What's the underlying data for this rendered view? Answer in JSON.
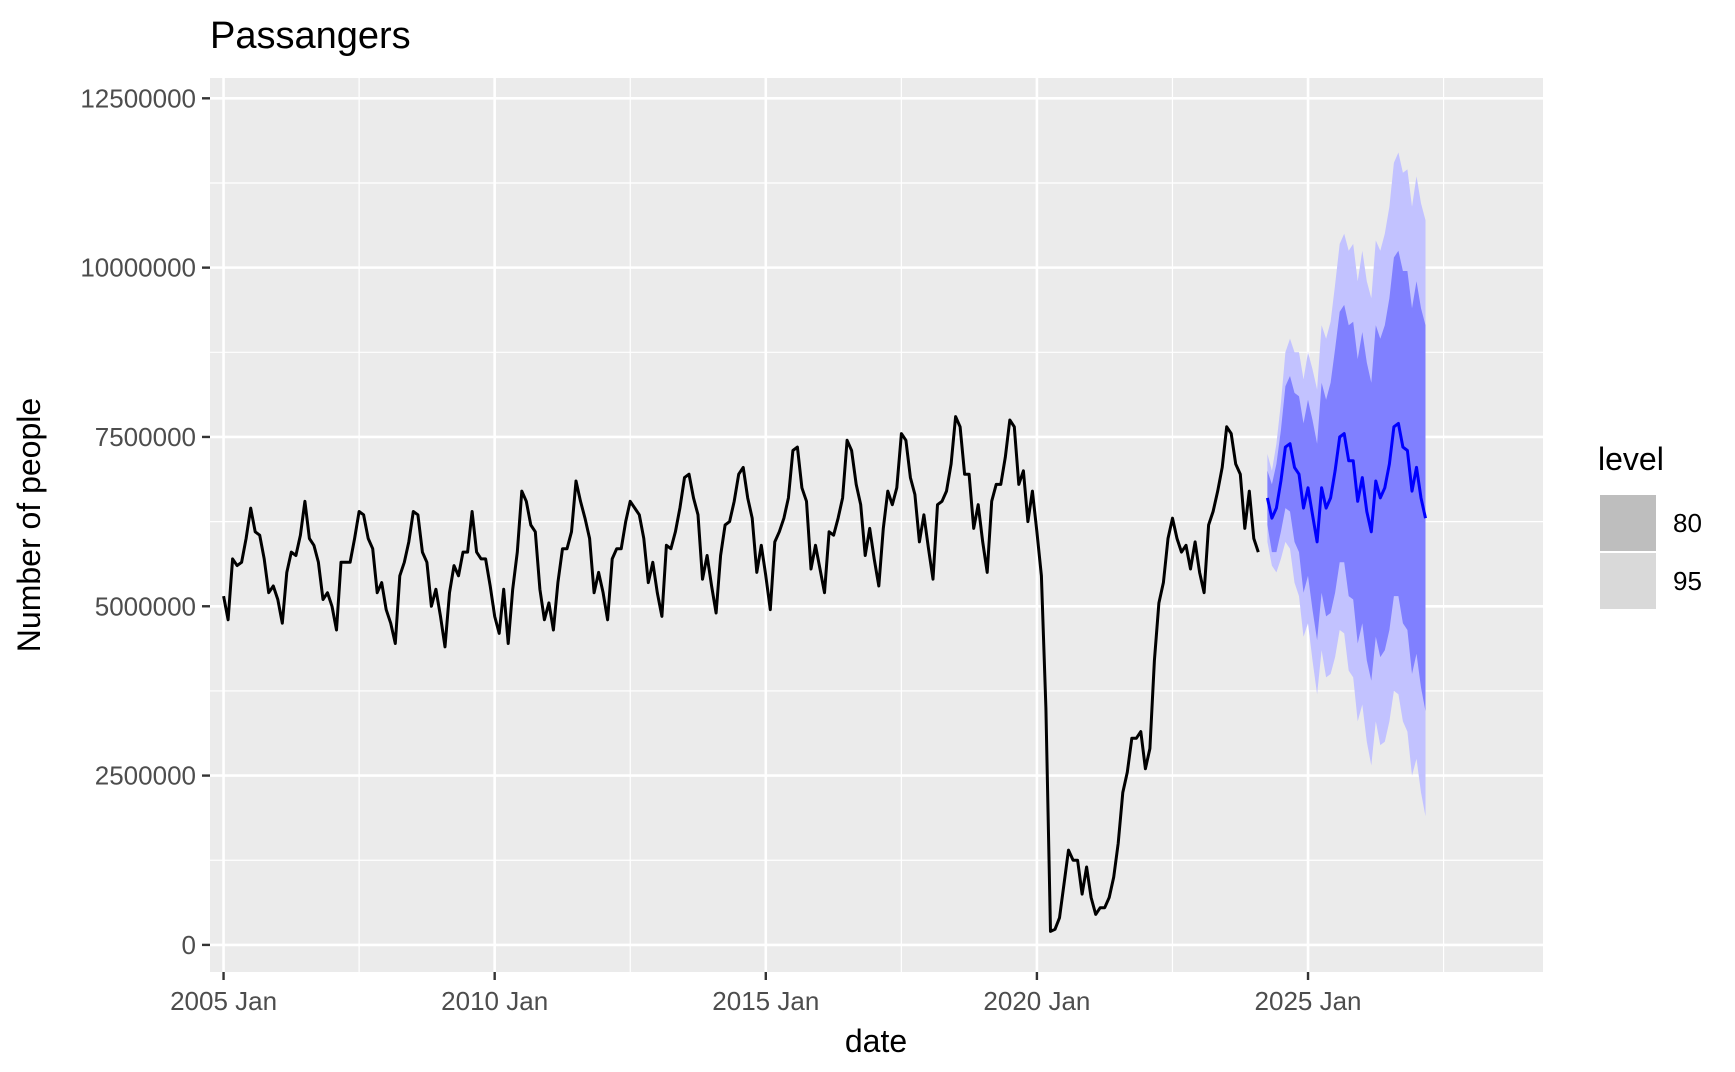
{
  "chart_data": {
    "type": "line",
    "title": "Passangers",
    "xlabel": "date",
    "ylabel": "Number of people",
    "x_ticks": [
      "2005 Jan",
      "2010 Jan",
      "2015 Jan",
      "2020 Jan",
      "2025 Jan"
    ],
    "y_ticks": [
      "0",
      "2500000",
      "5000000",
      "7500000",
      "10000000",
      "12500000"
    ],
    "xlim": [
      "2004-10",
      "2029-05"
    ],
    "ylim": [
      -400000,
      12800000
    ],
    "grid": true,
    "legend": {
      "title": "level",
      "position": "right",
      "entries": [
        {
          "label": "80",
          "color": "#bebebe"
        },
        {
          "label": "95",
          "color": "#d9d9d9"
        }
      ]
    },
    "colors": {
      "panel": "#ebebeb",
      "grid": "#ffffff",
      "history": "#000000",
      "forecast": "#0000ff",
      "band80": "#8080ff",
      "band95": "#c2c2ff"
    },
    "series": [
      {
        "kind": "history",
        "start": "2005-01",
        "values": [
          5150000,
          4800000,
          5700000,
          5600000,
          5650000,
          6000000,
          6450000,
          6100000,
          6050000,
          5700000,
          5200000,
          5300000,
          5100000,
          4750000,
          5500000,
          5800000,
          5750000,
          6050000,
          6550000,
          6000000,
          5900000,
          5650000,
          5100000,
          5200000,
          5000000,
          4650000,
          5650000,
          5650000,
          5650000,
          6000000,
          6400000,
          6350000,
          6000000,
          5850000,
          5200000,
          5350000,
          4950000,
          4750000,
          4450000,
          5450000,
          5650000,
          5950000,
          6400000,
          6350000,
          5800000,
          5650000,
          5000000,
          5250000,
          4850000,
          4400000,
          5200000,
          5600000,
          5450000,
          5800000,
          5800000,
          6400000,
          5800000,
          5700000,
          5700000,
          5300000,
          4850000,
          4600000,
          5250000,
          4450000,
          5250000,
          5800000,
          6700000,
          6550000,
          6200000,
          6100000,
          5250000,
          4800000,
          5050000,
          4650000,
          5350000,
          5850000,
          5850000,
          6100000,
          6850000,
          6550000,
          6300000,
          6000000,
          5200000,
          5500000,
          5200000,
          4800000,
          5700000,
          5850000,
          5850000,
          6250000,
          6550000,
          6450000,
          6350000,
          6000000,
          5350000,
          5650000,
          5200000,
          4850000,
          5900000,
          5850000,
          6100000,
          6450000,
          6900000,
          6950000,
          6600000,
          6350000,
          5400000,
          5750000,
          5300000,
          4900000,
          5750000,
          6200000,
          6250000,
          6550000,
          6950000,
          7050000,
          6600000,
          6300000,
          5500000,
          5900000,
          5450000,
          4950000,
          5950000,
          6100000,
          6300000,
          6600000,
          7300000,
          7350000,
          6750000,
          6550000,
          5550000,
          5900000,
          5550000,
          5200000,
          6100000,
          6050000,
          6300000,
          6600000,
          7450000,
          7300000,
          6800000,
          6500000,
          5750000,
          6150000,
          5700000,
          5300000,
          6150000,
          6700000,
          6500000,
          6750000,
          7550000,
          7450000,
          6900000,
          6650000,
          5950000,
          6350000,
          5850000,
          5400000,
          6500000,
          6550000,
          6700000,
          7100000,
          7800000,
          7650000,
          6950000,
          6950000,
          6150000,
          6500000,
          5950000,
          5500000,
          6550000,
          6800000,
          6800000,
          7200000,
          7750000,
          7650000,
          6800000,
          7000000,
          6250000,
          6700000,
          6100000,
          5450000,
          3500000,
          200000,
          230000,
          400000,
          900000,
          1400000,
          1250000,
          1250000,
          750000,
          1150000,
          700000,
          450000,
          550000,
          550000,
          700000,
          1000000,
          1500000,
          2250000,
          2550000,
          3050000,
          3050000,
          3150000,
          2600000,
          2900000,
          4200000,
          5050000,
          5350000,
          6000000,
          6300000,
          6000000,
          5800000,
          5900000,
          5550000,
          5950000,
          5500000,
          5200000,
          6200000,
          6400000,
          6700000,
          7050000,
          7650000,
          7550000,
          7100000,
          6950000,
          6150000,
          6700000,
          6000000,
          5800000
        ]
      },
      {
        "kind": "forecast",
        "start": "2024-04",
        "values": [
          6600000,
          6300000,
          6450000,
          6850000,
          7350000,
          7400000,
          7050000,
          6950000,
          6450000,
          6750000,
          6350000,
          5950000,
          6750000,
          6450000,
          6600000,
          7000000,
          7500000,
          7550000,
          7150000,
          7150000,
          6550000,
          6900000,
          6400000,
          6100000,
          6850000,
          6600000,
          6750000,
          7100000,
          7650000,
          7700000,
          7350000,
          7300000,
          6700000,
          7050000,
          6600000,
          6300000
        ],
        "lo80": [
          6200000,
          5800000,
          5800000,
          6100000,
          6450000,
          6400000,
          5950000,
          5800000,
          5200000,
          5450000,
          4950000,
          4500000,
          5200000,
          4850000,
          4900000,
          5200000,
          5650000,
          5650000,
          5150000,
          5100000,
          4450000,
          4750000,
          4200000,
          3900000,
          4550000,
          4250000,
          4350000,
          4650000,
          5150000,
          5150000,
          4750000,
          4650000,
          4000000,
          4300000,
          3800000,
          3450000
        ],
        "hi80": [
          7000000,
          6800000,
          7100000,
          7600000,
          8250000,
          8400000,
          8150000,
          8100000,
          7700000,
          8050000,
          7750000,
          7400000,
          8300000,
          8050000,
          8300000,
          8800000,
          9350000,
          9450000,
          9150000,
          9200000,
          8650000,
          9050000,
          8600000,
          8300000,
          9150000,
          8950000,
          9150000,
          9550000,
          10150000,
          10250000,
          9950000,
          9950000,
          9400000,
          9800000,
          9400000,
          9150000
        ],
        "lo95": [
          5950000,
          5600000,
          5500000,
          5700000,
          5950000,
          5850000,
          5350000,
          5150000,
          4550000,
          4750000,
          4200000,
          3700000,
          4350000,
          3950000,
          4000000,
          4250000,
          4650000,
          4600000,
          4050000,
          3950000,
          3300000,
          3550000,
          3000000,
          2650000,
          3300000,
          2950000,
          3000000,
          3300000,
          3750000,
          3700000,
          3300000,
          3150000,
          2500000,
          2750000,
          2250000,
          1900000
        ],
        "hi95": [
          7250000,
          7000000,
          7400000,
          8000000,
          8750000,
          8950000,
          8750000,
          8750000,
          8350000,
          8750000,
          8500000,
          8200000,
          9150000,
          8950000,
          9200000,
          9750000,
          10350000,
          10500000,
          10250000,
          10350000,
          9800000,
          10250000,
          9800000,
          9550000,
          10400000,
          10250000,
          10500000,
          10900000,
          11550000,
          11700000,
          11400000,
          11450000,
          10900000,
          11350000,
          10950000,
          10700000
        ]
      }
    ]
  }
}
